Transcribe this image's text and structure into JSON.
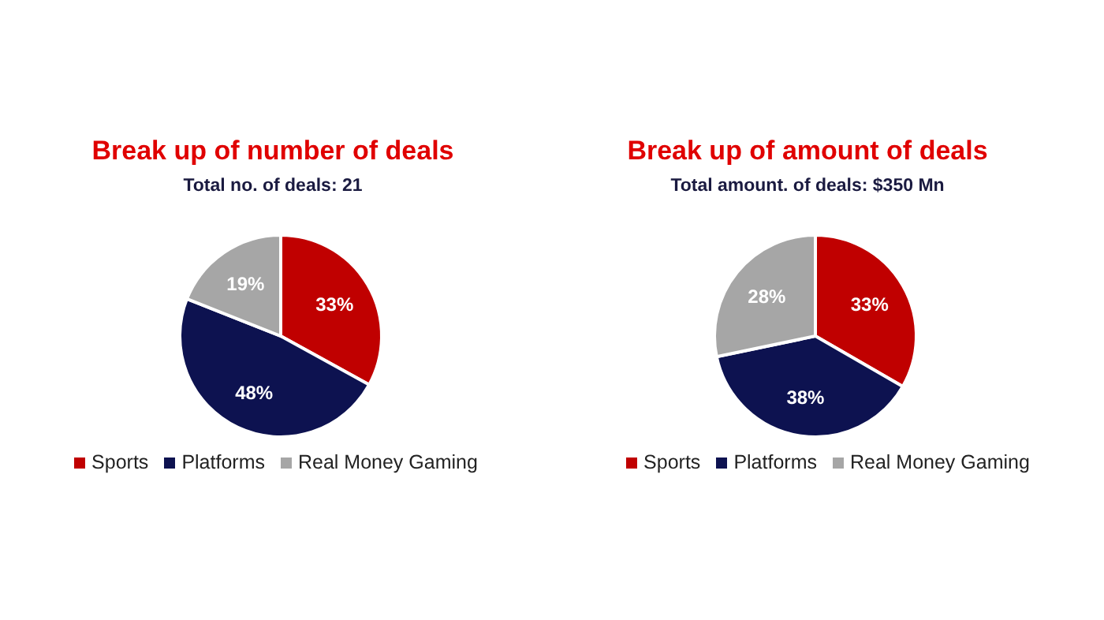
{
  "chart_data": [
    {
      "type": "pie",
      "title": "Break up of number of deals",
      "subtitle": "Total no. of deals: 21",
      "categories": [
        "Sports",
        "Platforms",
        "Real Money Gaming"
      ],
      "values": [
        33,
        48,
        19
      ],
      "value_labels": [
        "33%",
        "48%",
        "19%"
      ],
      "colors": [
        "#c00000",
        "#0d1250",
        "#a6a6a6"
      ],
      "legend": "bottom"
    },
    {
      "type": "pie",
      "title": "Break up of amount of deals",
      "subtitle": "Total amount. of deals: $350 Mn",
      "categories": [
        "Sports",
        "Platforms",
        "Real Money Gaming"
      ],
      "values": [
        33,
        38,
        28
      ],
      "value_labels": [
        "33%",
        "38%",
        "28%"
      ],
      "colors": [
        "#c00000",
        "#0d1250",
        "#a6a6a6"
      ],
      "legend": "bottom"
    }
  ]
}
